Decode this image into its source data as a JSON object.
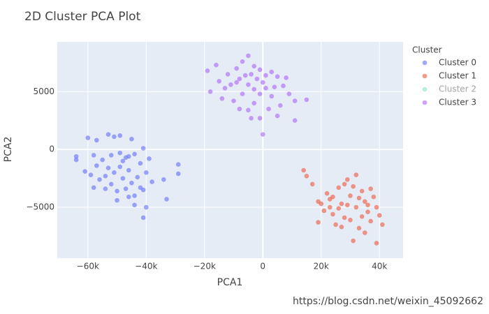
{
  "chart_data": {
    "type": "scatter",
    "title": "2D Cluster PCA Plot",
    "x_label": "PCA1",
    "y_label": "PCA2",
    "legend_title": "Cluster",
    "legend_position": "right",
    "grid": true,
    "watermark": "https://blog.csdn.net/weixin_45092662",
    "xlim": [
      -70500,
      48100
    ],
    "ylim": [
      -9400,
      9300
    ],
    "xticks": [
      {
        "value": -60000,
        "label": "−60k"
      },
      {
        "value": -40000,
        "label": "−40k"
      },
      {
        "value": -20000,
        "label": "−20k"
      },
      0,
      {
        "value": 20000,
        "label": "20k"
      },
      {
        "value": 40000,
        "label": "40k"
      }
    ],
    "yticks": [
      {
        "value": -5000,
        "label": "−5000"
      },
      0,
      5000
    ],
    "series": [
      {
        "name": "Cluster 0",
        "color": "#636efa",
        "visible": true,
        "x": [
          -64000,
          -64000,
          -60000,
          -57000,
          -53000,
          -51000,
          -49000,
          -45000,
          -41000,
          -29000,
          -29000,
          -34000,
          -33000,
          -40000,
          -41000,
          -44000,
          -46000,
          -50000,
          -54000,
          -58000,
          -59000,
          -61000,
          -57000,
          -55000,
          -52000,
          -49000,
          -47000,
          -44000,
          -42000,
          -40000,
          -38000,
          -42000,
          -45000,
          -48000,
          -51000,
          -53000,
          -49000,
          -46000,
          -43000,
          -47000,
          -52000,
          -56000,
          -50000,
          -44000,
          -41000,
          -48000,
          -54000,
          -46000,
          -39000,
          -58000
        ],
        "y": [
          -600,
          -900,
          1000,
          800,
          1300,
          1100,
          1200,
          900,
          100,
          -1300,
          -2100,
          -2600,
          -4300,
          -5000,
          -5900,
          -4800,
          -4100,
          -3600,
          -3400,
          -3300,
          -2200,
          -1900,
          -1400,
          -900,
          -500,
          -300,
          -700,
          -400,
          -1200,
          -2000,
          -2800,
          -3300,
          -2900,
          -2500,
          -2000,
          -1600,
          -1500,
          -1800,
          -2400,
          -3400,
          -3000,
          -2600,
          -4400,
          -4000,
          -3500,
          -1000,
          -2300,
          -600,
          -800,
          -500
        ]
      },
      {
        "name": "Cluster 1",
        "color": "#ef553b",
        "visible": true,
        "x": [
          14000,
          15000,
          17000,
          19000,
          20000,
          19000,
          21000,
          22000,
          23000,
          24000,
          25000,
          26000,
          27000,
          28000,
          29000,
          30000,
          31000,
          32000,
          32000,
          33000,
          34000,
          35000,
          36000,
          37000,
          38000,
          39000,
          39000,
          40000,
          41000,
          28000,
          26000,
          33000,
          30000,
          35000,
          37000,
          23000,
          31000,
          34000,
          29000,
          36000,
          27000,
          24000
        ],
        "y": [
          -1800,
          -2300,
          -3000,
          -4500,
          -4700,
          -6300,
          -5300,
          -3800,
          -4300,
          -5600,
          -6500,
          -3300,
          -4700,
          -5900,
          -2600,
          -4000,
          -7900,
          -2200,
          -5000,
          -6800,
          -3600,
          -4500,
          -5400,
          -6200,
          -4100,
          -5000,
          -8100,
          -5700,
          -6500,
          -3000,
          -5100,
          -4200,
          -6100,
          -7200,
          -3400,
          -5000,
          -3200,
          -5800,
          -4800,
          -4800,
          -6700,
          -4100
        ]
      },
      {
        "name": "Cluster 2",
        "color": "#00cc96",
        "visible": false,
        "x": [],
        "y": []
      },
      {
        "name": "Cluster 3",
        "color": "#ab63fa",
        "visible": true,
        "x": [
          -19000,
          -16000,
          -18000,
          -14000,
          -12000,
          -11000,
          -9000,
          -7000,
          -5000,
          -3000,
          -1000,
          1000,
          3000,
          5000,
          7000,
          9000,
          11000,
          15000,
          11000,
          5000,
          0,
          -1000,
          -4000,
          -5000,
          -8000,
          -10000,
          -7000,
          -5000,
          -3000,
          -1000,
          1000,
          3000,
          -2000,
          -6000,
          -9000,
          -13000,
          4000,
          6000,
          -3000,
          2000,
          -8000,
          -4000,
          0,
          -15000,
          8000
        ],
        "y": [
          6800,
          7300,
          5000,
          4400,
          6500,
          5600,
          7000,
          7600,
          8100,
          7200,
          6900,
          6400,
          6700,
          6300,
          5500,
          4800,
          4200,
          4300,
          2500,
          2900,
          1300,
          2700,
          2700,
          3400,
          3500,
          4200,
          4800,
          5600,
          5200,
          4800,
          5300,
          4600,
          6100,
          6400,
          5800,
          5300,
          5400,
          3800,
          4000,
          3500,
          6100,
          6500,
          5800,
          5900,
          6200
        ]
      }
    ]
  }
}
